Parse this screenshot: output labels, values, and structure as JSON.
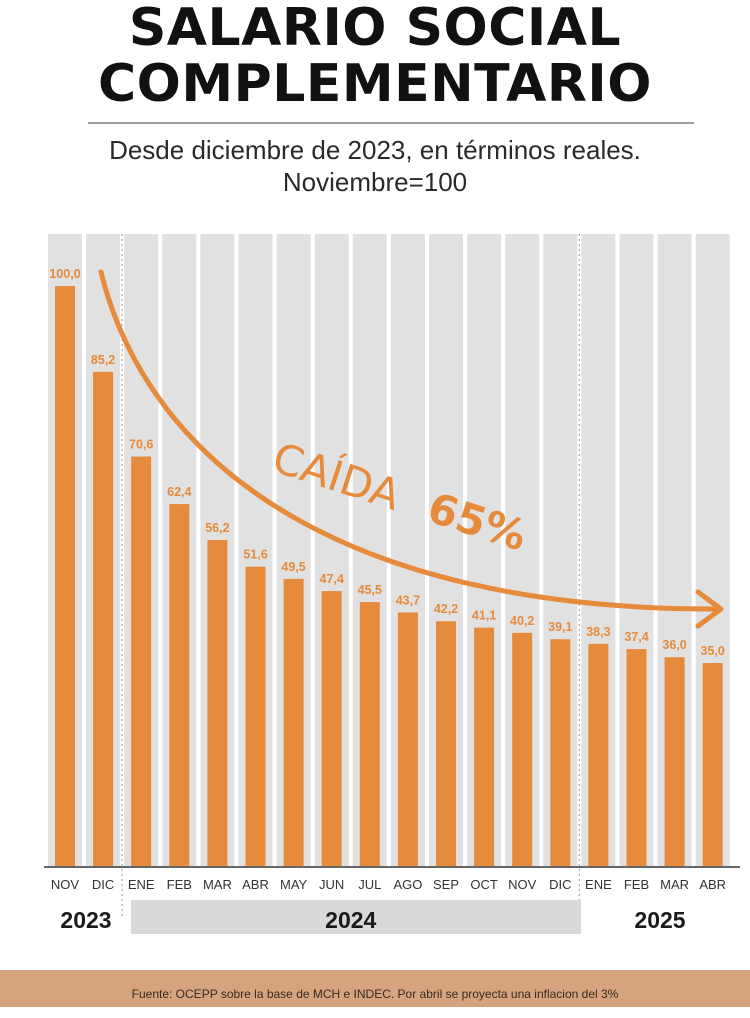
{
  "title": {
    "line1": "SALARIO SOCIAL",
    "line2": "COMPLEMENTARIO"
  },
  "subtitle": {
    "line1": "Desde diciembre de 2023, en términos reales.",
    "line2": "Noviembre=100"
  },
  "annotation": {
    "text": "CAÍDA",
    "percent": "65%"
  },
  "colors": {
    "bar": "#e68a3c",
    "column_bg": "#e1e1e1",
    "label": "#e68a3c",
    "year_band": "#d9d9d9",
    "footer_bg": "#d5a47e"
  },
  "chart_data": {
    "type": "bar",
    "categories": [
      "NOV",
      "DIC",
      "ENE",
      "FEB",
      "MAR",
      "ABR",
      "MAY",
      "JUN",
      "JUL",
      "AGO",
      "SEP",
      "OCT",
      "NOV",
      "DIC",
      "ENE",
      "FEB",
      "MAR",
      "ABR"
    ],
    "values": [
      100.0,
      85.2,
      70.6,
      62.4,
      56.2,
      51.6,
      49.5,
      47.4,
      45.5,
      43.7,
      42.2,
      41.1,
      40.2,
      39.1,
      38.3,
      37.4,
      36.0,
      35.0
    ],
    "value_labels": [
      "100,0",
      "85,2",
      "70,6",
      "62,4",
      "56,2",
      "51,6",
      "49,5",
      "47,4",
      "45,5",
      "43,7",
      "42,2",
      "41,1",
      "40,2",
      "39,1",
      "38,3",
      "37,4",
      "36,0",
      "35,0"
    ],
    "years": [
      {
        "label": "2023",
        "from": 0,
        "to": 1
      },
      {
        "label": "2024",
        "from": 2,
        "to": 13
      },
      {
        "label": "2025",
        "from": 14,
        "to": 17
      }
    ],
    "ylim": [
      0,
      100
    ],
    "grid": false,
    "legend": "none"
  },
  "footer": {
    "source": "Fuente: OCEPP sobre la base de MCH e INDEC. Por abril se proyecta una inflacion del 3%"
  }
}
